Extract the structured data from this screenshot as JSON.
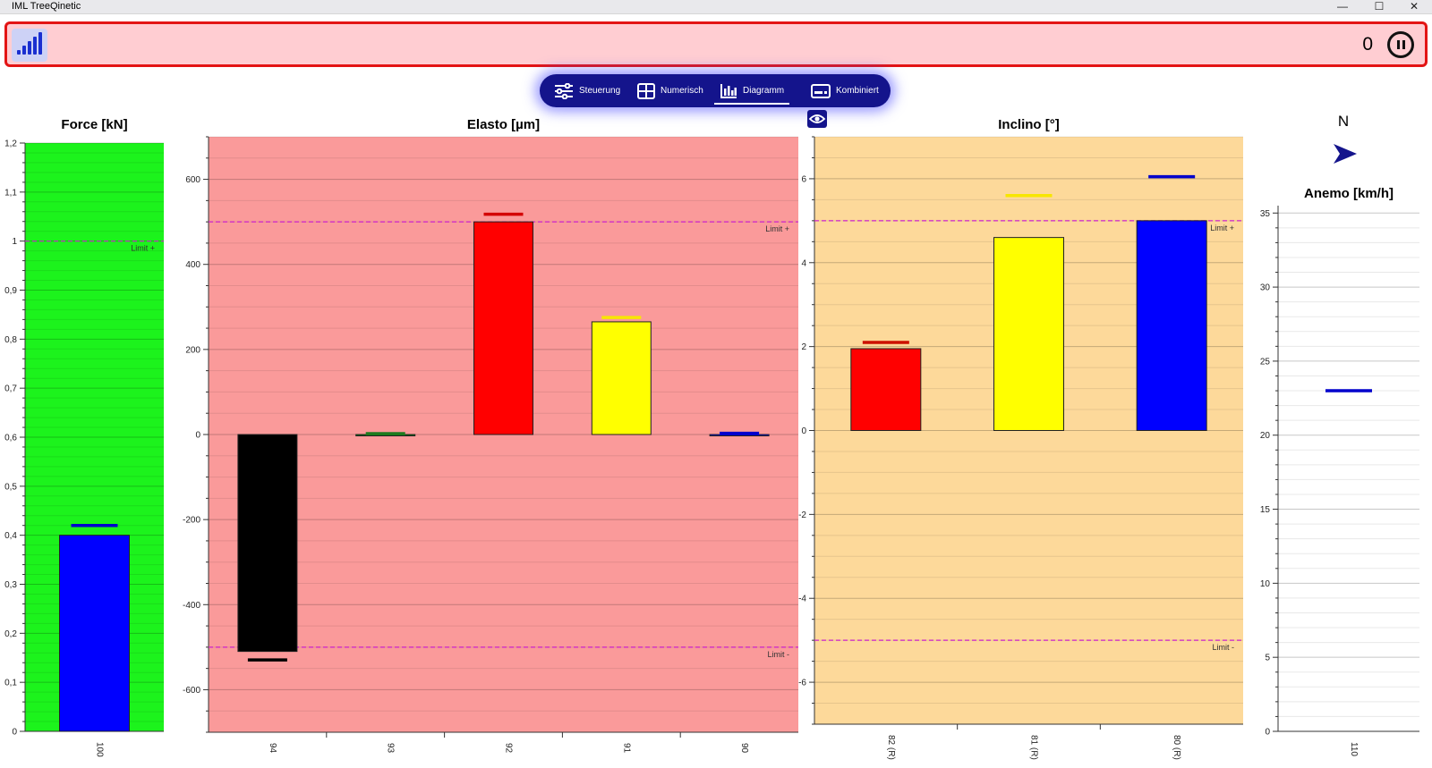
{
  "window": {
    "title": "IML TreeQinetic",
    "minimize": "—",
    "maximize": "☐",
    "close": "✕"
  },
  "status": {
    "counter": "0",
    "background": "#ffcdd2",
    "border": "#e31414"
  },
  "nav": {
    "tabs": [
      {
        "label": "Steuerung",
        "icon": "sliders-icon"
      },
      {
        "label": "Numerisch",
        "icon": "grid-icon"
      },
      {
        "label": "Diagramm",
        "icon": "bar-chart-icon",
        "active": true
      },
      {
        "label": "Kombiniert",
        "icon": "card-icon"
      }
    ]
  },
  "compass": {
    "direction": "N",
    "icon": "direction-arrow-icon"
  },
  "chart_data": [
    {
      "type": "bar",
      "title": "Force [kN]",
      "background": "#1cf31c",
      "categories": [
        "100"
      ],
      "values": [
        0.4
      ],
      "peaks": [
        0.42
      ],
      "colors": [
        "#0000ff"
      ],
      "peak_colors": [
        "#0000cc"
      ],
      "ylim": [
        0,
        1.2
      ],
      "yticks": [
        {
          "v": 0,
          "t": "0"
        },
        {
          "v": 0.1,
          "t": "0,1"
        },
        {
          "v": 0.2,
          "t": "0,2"
        },
        {
          "v": 0.3,
          "t": "0,3"
        },
        {
          "v": 0.4,
          "t": "0,4"
        },
        {
          "v": 0.5,
          "t": "0,5"
        },
        {
          "v": 0.6,
          "t": "0,6"
        },
        {
          "v": 0.7,
          "t": "0,7"
        },
        {
          "v": 0.8,
          "t": "0,8"
        },
        {
          "v": 0.9,
          "t": "0,9"
        },
        {
          "v": 1,
          "t": "1"
        },
        {
          "v": 1.1,
          "t": "1,1"
        },
        {
          "v": 1.2,
          "t": "1,2"
        }
      ],
      "limits": [
        {
          "value": 1.0,
          "label": "Limit +"
        }
      ],
      "grid": true
    },
    {
      "type": "bar",
      "title": "Elasto [µm]",
      "background": "#fa9a9a",
      "categories": [
        "94",
        "93",
        "92",
        "91",
        "90"
      ],
      "values": [
        -510,
        0,
        500,
        265,
        0
      ],
      "peaks": [
        -530,
        2,
        518,
        275,
        3
      ],
      "colors": [
        "#000000",
        "#008000",
        "#ff0000",
        "#ffff00",
        "#0000ff"
      ],
      "peak_colors": [
        "#000000",
        "#1f7a1f",
        "#d40000",
        "#f7e600",
        "#0000cc"
      ],
      "ylim": [
        -700,
        700
      ],
      "yticks": [
        {
          "v": -600,
          "t": "-600"
        },
        {
          "v": -400,
          "t": "-400"
        },
        {
          "v": -200,
          "t": "-200"
        },
        {
          "v": 0,
          "t": "0"
        },
        {
          "v": 200,
          "t": "200"
        },
        {
          "v": 400,
          "t": "400"
        },
        {
          "v": 600,
          "t": "600"
        }
      ],
      "limits": [
        {
          "value": 500,
          "label": "Limit +"
        },
        {
          "value": -500,
          "label": "Limit -"
        }
      ],
      "grid": true
    },
    {
      "type": "bar",
      "title": "Inclino [°]",
      "background": "#fdd99a",
      "categories": [
        "82 (R)",
        "81 (R)",
        "80 (R)"
      ],
      "values": [
        1.95,
        4.6,
        5.0
      ],
      "peaks": [
        2.1,
        5.6,
        6.05
      ],
      "colors": [
        "#ff0000",
        "#ffff00",
        "#0000ff"
      ],
      "peak_colors": [
        "#cc1100",
        "#f7e600",
        "#0000cc"
      ],
      "ylim": [
        -7,
        7
      ],
      "yticks": [
        {
          "v": -6,
          "t": "-6"
        },
        {
          "v": -4,
          "t": "-4"
        },
        {
          "v": -2,
          "t": "-2"
        },
        {
          "v": 0,
          "t": "0"
        },
        {
          "v": 2,
          "t": "2"
        },
        {
          "v": 4,
          "t": "4"
        },
        {
          "v": 6,
          "t": "6"
        }
      ],
      "limits": [
        {
          "value": 5,
          "label": "Limit +"
        },
        {
          "value": -5,
          "label": "Limit -"
        }
      ],
      "grid": true
    },
    {
      "type": "bar",
      "title": "Anemo [km/h]",
      "background": "#ffffff",
      "categories": [
        "110"
      ],
      "values": [
        0
      ],
      "peaks": [
        23
      ],
      "colors": [
        "#0000ff"
      ],
      "peak_colors": [
        "#0000cc"
      ],
      "ylim": [
        0,
        35.5
      ],
      "yticks": [
        {
          "v": 0,
          "t": "0"
        },
        {
          "v": 5,
          "t": "5"
        },
        {
          "v": 10,
          "t": "10"
        },
        {
          "v": 15,
          "t": "15"
        },
        {
          "v": 20,
          "t": "20"
        },
        {
          "v": 25,
          "t": "25"
        },
        {
          "v": 30,
          "t": "30"
        },
        {
          "v": 35,
          "t": "35"
        }
      ],
      "limits": [],
      "grid": true
    }
  ]
}
